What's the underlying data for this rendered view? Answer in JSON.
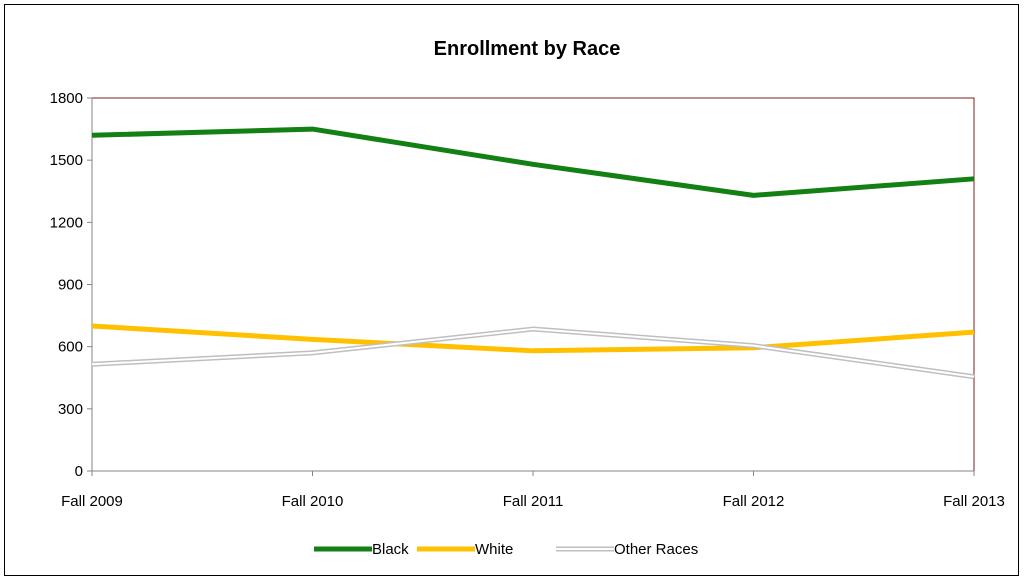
{
  "chart_data": {
    "type": "line",
    "title": "Enrollment by Race",
    "xlabel": "",
    "ylabel": "",
    "categories": [
      "Fall 2009",
      "Fall 2010",
      "Fall 2011",
      "Fall 2012",
      "Fall 2013"
    ],
    "ylim": [
      0,
      1800
    ],
    "yticks": [
      0,
      300,
      600,
      900,
      1200,
      1500,
      1800
    ],
    "grid": false,
    "legend_position": "bottom",
    "series": [
      {
        "name": "Black",
        "values": [
          1620,
          1650,
          1480,
          1330,
          1410
        ],
        "color": "#138013",
        "style": "solid"
      },
      {
        "name": "White",
        "values": [
          700,
          635,
          580,
          595,
          670
        ],
        "color": "#FFC000",
        "style": "solid"
      },
      {
        "name": "Other Races",
        "values": [
          515,
          570,
          685,
          605,
          455
        ],
        "color": "#BFBFBF",
        "style": "double"
      }
    ]
  }
}
